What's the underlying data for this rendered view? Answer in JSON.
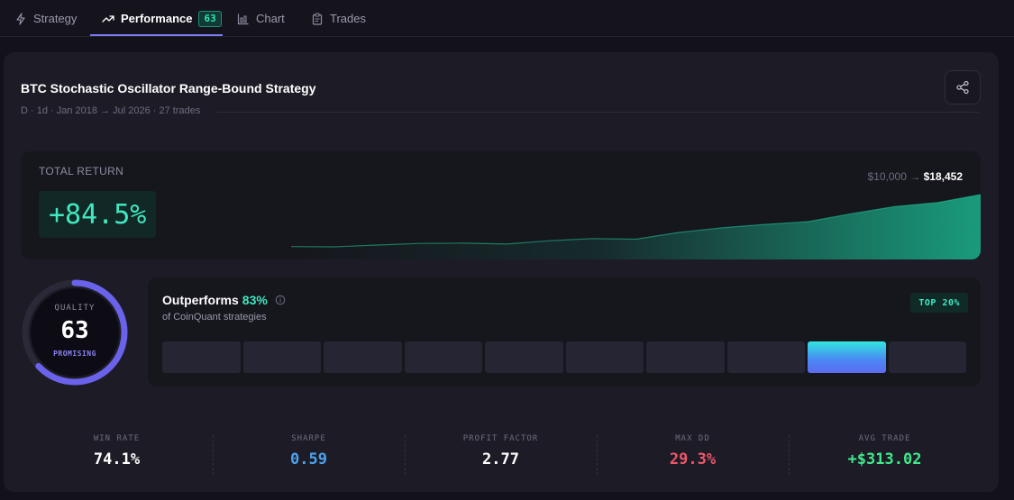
{
  "tabs": [
    {
      "label": "Strategy",
      "icon": "bolt-icon"
    },
    {
      "label": "Performance",
      "icon": "trending-up-icon",
      "badge": "63",
      "active": true
    },
    {
      "label": "Chart",
      "icon": "chart-icon"
    },
    {
      "label": "Trades",
      "icon": "clipboard-icon"
    }
  ],
  "header": {
    "title": "BTC Stochastic Oscillator Range-Bound Strategy",
    "meta": "D · 1d · Jan 2018 → Jul 2026 · 27 trades"
  },
  "total_return": {
    "label": "TOTAL RETURN",
    "value": "+84.5%",
    "start": "$10,000",
    "arrow": "→",
    "end": "$18,452",
    "equity_curve": [
      10000,
      9950,
      10250,
      10500,
      10550,
      10400,
      10950,
      11300,
      11200,
      12300,
      13050,
      13600,
      14050,
      15350,
      16500,
      17150,
      18452
    ]
  },
  "quality": {
    "label": "QUALITY",
    "score": "63",
    "rating": "PROMISING",
    "fraction": 0.63
  },
  "outperform": {
    "title": "Outperforms",
    "pct": "83%",
    "subtitle": "of CoinQuant strategies",
    "badge": "TOP 20%",
    "bar_count": 10,
    "active_index": 8
  },
  "stats": [
    {
      "label": "WIN RATE",
      "value": "74.1%",
      "color": "#ffffff"
    },
    {
      "label": "SHARPE",
      "value": "0.59",
      "color": "#4aa3f0"
    },
    {
      "label": "PROFIT FACTOR",
      "value": "2.77",
      "color": "#ffffff"
    },
    {
      "label": "MAX DD",
      "value": "29.3%",
      "color": "#f0566a"
    },
    {
      "label": "AVG TRADE",
      "value": "+$313.02",
      "color": "#3fe98a"
    }
  ],
  "colors": {
    "accent": "#7c7bf2",
    "positive": "#3fe9c0",
    "ring": "#6a62ea"
  }
}
